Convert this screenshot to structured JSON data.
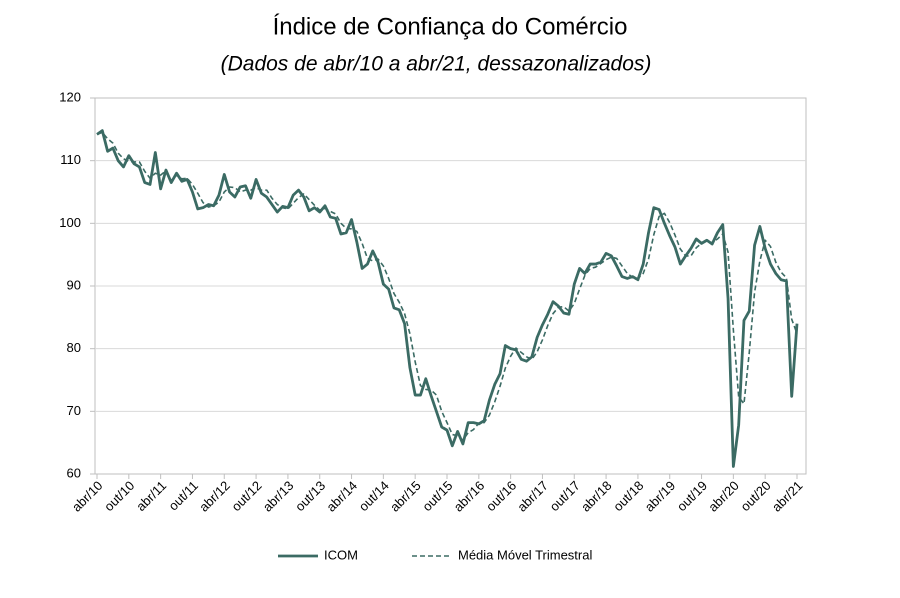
{
  "chart_data": {
    "type": "line",
    "title": "Índice de Confiança do Comércio",
    "subtitle": "(Dados de abr/10 a abr/21, dessazonalizados)",
    "categories": [
      "abr/10",
      null,
      null,
      null,
      null,
      null,
      "out/10",
      null,
      null,
      null,
      null,
      null,
      "abr/11",
      null,
      null,
      null,
      null,
      null,
      "out/11",
      null,
      null,
      null,
      null,
      null,
      "abr/12",
      null,
      null,
      null,
      null,
      null,
      "out/12",
      null,
      null,
      null,
      null,
      null,
      "abr/13",
      null,
      null,
      null,
      null,
      null,
      "out/13",
      null,
      null,
      null,
      null,
      null,
      "abr/14",
      null,
      null,
      null,
      null,
      null,
      "out/14",
      null,
      null,
      null,
      null,
      null,
      "abr/15",
      null,
      null,
      null,
      null,
      null,
      "out/15",
      null,
      null,
      null,
      null,
      null,
      "abr/16",
      null,
      null,
      null,
      null,
      null,
      "out/16",
      null,
      null,
      null,
      null,
      null,
      "abr/17",
      null,
      null,
      null,
      null,
      null,
      "out/17",
      null,
      null,
      null,
      null,
      null,
      "abr/18",
      null,
      null,
      null,
      null,
      null,
      "out/18",
      null,
      null,
      null,
      null,
      null,
      "abr/19",
      null,
      null,
      null,
      null,
      null,
      "out/19",
      null,
      null,
      null,
      null,
      null,
      "abr/20",
      null,
      null,
      null,
      null,
      null,
      "out/20",
      null,
      null,
      null,
      null,
      null,
      "abr/21"
    ],
    "series": [
      {
        "name": "ICOM",
        "color": "#3b6b64",
        "line_style": "solid",
        "values": [
          114.2,
          114.8,
          111.5,
          112.0,
          110.0,
          109.0,
          110.8,
          109.5,
          109.0,
          106.5,
          106.2,
          111.3,
          105.5,
          108.5,
          106.5,
          108.0,
          106.7,
          107.0,
          105.0,
          102.3,
          102.5,
          103.0,
          102.8,
          104.5,
          107.8,
          105.0,
          104.2,
          105.8,
          106.0,
          104.0,
          107.0,
          104.8,
          104.2,
          103.0,
          101.8,
          102.7,
          102.5,
          104.5,
          105.3,
          104.2,
          102.0,
          102.5,
          101.8,
          102.8,
          101.0,
          100.8,
          98.3,
          98.5,
          100.6,
          97.0,
          92.8,
          93.5,
          95.6,
          93.8,
          90.3,
          89.5,
          86.5,
          86.2,
          84.0,
          77.0,
          72.6,
          72.6,
          75.2,
          72.5,
          70.0,
          67.5,
          67.0,
          64.5,
          66.8,
          64.8,
          68.2,
          68.2,
          68.0,
          68.5,
          71.8,
          74.3,
          76.0,
          80.5,
          80.0,
          79.8,
          78.3,
          78.0,
          78.7,
          81.8,
          83.8,
          85.5,
          87.5,
          86.8,
          85.7,
          85.5,
          90.3,
          92.8,
          92.0,
          93.5,
          93.5,
          93.8,
          95.2,
          94.8,
          93.2,
          91.5,
          91.2,
          91.5,
          91.0,
          93.5,
          98.5,
          102.5,
          102.2,
          100.0,
          98.0,
          96.2,
          93.5,
          94.8,
          96.0,
          97.5,
          96.8,
          97.3,
          96.7,
          98.5,
          99.8,
          88.0,
          61.2,
          67.8,
          84.5,
          86.0,
          96.5,
          99.5,
          96.0,
          93.5,
          92.0,
          91.0,
          90.8,
          72.4,
          84.0
        ]
      },
      {
        "name": "Média Móvel Trimestral",
        "color": "#3b6b64",
        "line_style": "dashed",
        "values": [
          114.2,
          114.5,
          113.5,
          112.8,
          111.2,
          110.3,
          109.9,
          109.8,
          109.8,
          108.3,
          107.2,
          108.0,
          107.7,
          108.4,
          106.8,
          107.7,
          107.1,
          107.2,
          106.2,
          104.8,
          103.3,
          102.6,
          102.8,
          103.4,
          105.0,
          105.8,
          105.7,
          105.0,
          105.3,
          105.3,
          105.7,
          105.3,
          105.3,
          104.0,
          103.0,
          102.5,
          102.3,
          103.2,
          104.1,
          104.7,
          103.8,
          102.9,
          102.1,
          102.4,
          101.9,
          101.5,
          100.0,
          99.2,
          99.1,
          98.7,
          96.8,
          94.4,
          94.0,
          94.3,
          93.2,
          91.2,
          88.8,
          87.4,
          85.6,
          82.4,
          77.9,
          74.1,
          73.5,
          73.4,
          72.6,
          70.0,
          68.2,
          66.3,
          66.1,
          65.4,
          66.6,
          67.1,
          68.1,
          68.2,
          69.4,
          71.5,
          74.0,
          76.9,
          78.8,
          80.1,
          79.4,
          78.7,
          78.3,
          79.5,
          81.4,
          83.7,
          85.6,
          86.6,
          86.7,
          86.0,
          87.2,
          89.5,
          91.7,
          92.8,
          93.0,
          93.6,
          94.2,
          94.6,
          94.4,
          93.2,
          92.0,
          91.4,
          91.2,
          92.0,
          94.3,
          98.2,
          101.1,
          101.6,
          100.1,
          98.1,
          95.9,
          94.8,
          94.8,
          96.1,
          96.8,
          97.2,
          96.9,
          97.5,
          98.3,
          95.4,
          83.0,
          72.3,
          71.2,
          79.4,
          89.0,
          94.0,
          97.3,
          96.3,
          93.8,
          92.2,
          91.3,
          84.7,
          82.4
        ]
      }
    ],
    "ylim": [
      60,
      120
    ],
    "yticks": [
      60,
      70,
      80,
      90,
      100,
      110,
      120
    ],
    "grid": true,
    "legend": "bottom"
  }
}
